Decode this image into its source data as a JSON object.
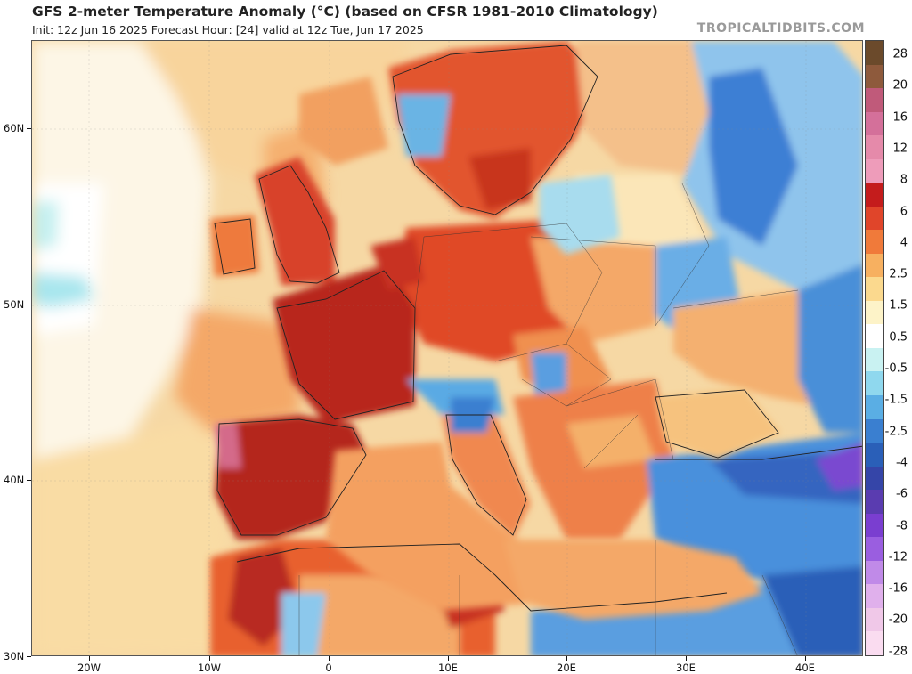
{
  "header": {
    "title": "GFS 2-meter Temperature Anomaly (°C) (based on CFSR 1981-2010 Climatology)",
    "subtitle": "Init: 12z Jun 16 2025   Forecast Hour: [24]   valid at 12z Tue, Jun 17 2025",
    "brand": "TROPICALTIDBITS.COM"
  },
  "map": {
    "lat_labels": [
      "60N",
      "50N",
      "40N",
      "30N"
    ],
    "lon_labels": [
      "20W",
      "10W",
      "0",
      "10E",
      "20E",
      "30E",
      "40E"
    ]
  },
  "colorbar": {
    "labels": [
      "28",
      "20",
      "16",
      "12",
      "8",
      "6",
      "4",
      "2.5",
      "1.5",
      "0.5",
      "-0.5",
      "-1.5",
      "-2.5",
      "-4",
      "-6",
      "-8",
      "-12",
      "-16",
      "-20",
      "-28"
    ],
    "colors": [
      "#6b4a2b",
      "#8e5a3c",
      "#c05a7a",
      "#d4709a",
      "#e58aaa",
      "#ee9cba",
      "#c41c1c",
      "#e0452a",
      "#f07a3a",
      "#f7b060",
      "#fbd98e",
      "#fdf3c8",
      "#ffffff",
      "#c9f2f2",
      "#8fd8ee",
      "#5aaee4",
      "#3a7fd0",
      "#2a5fb8",
      "#3545a8",
      "#5a3cb0",
      "#7a3ed0",
      "#9a5ee0",
      "#c08ae8",
      "#e0b0ec",
      "#f0c8e8",
      "#fadcf0"
    ]
  }
}
